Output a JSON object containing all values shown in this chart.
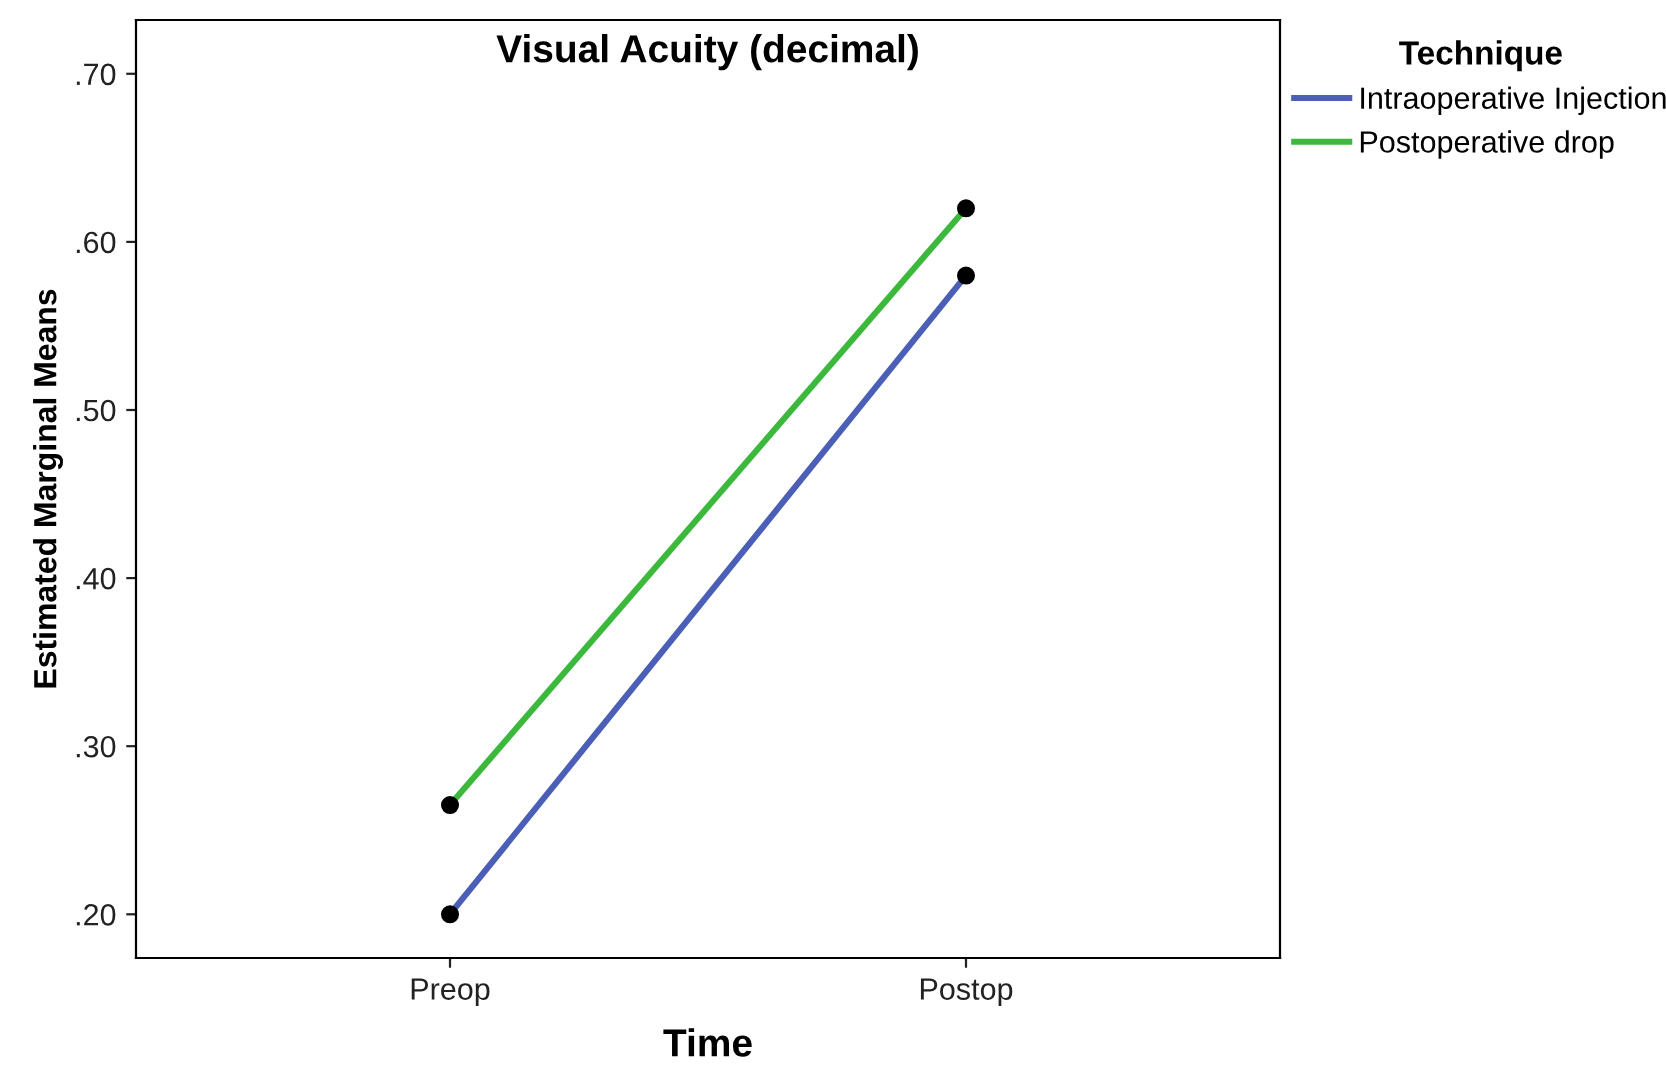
{
  "chart_data": {
    "type": "line",
    "title": "Visual Acuity (decimal)",
    "xlabel": "Time",
    "ylabel": "Estimated Marginal Means",
    "legend_title": "Technique",
    "categories": [
      "Preop",
      "Postop"
    ],
    "series": [
      {
        "name": "Intraoperative Injection",
        "color": "#4a5fb5",
        "values": [
          0.2,
          0.58
        ]
      },
      {
        "name": "Postoperative drop",
        "color": "#3cb93c",
        "values": [
          0.265,
          0.62
        ]
      }
    ],
    "ylim": [
      0.174,
      0.732
    ],
    "yticks": [
      {
        "value": 0.2,
        "label": ".20"
      },
      {
        "value": 0.3,
        "label": ".30"
      },
      {
        "value": 0.4,
        "label": ".40"
      },
      {
        "value": 0.5,
        "label": ".50"
      },
      {
        "value": 0.6,
        "label": ".60"
      },
      {
        "value": 0.7,
        "label": ".70"
      }
    ],
    "grid": false,
    "legend": "top right",
    "marker": "circle",
    "line_style": "solid"
  }
}
